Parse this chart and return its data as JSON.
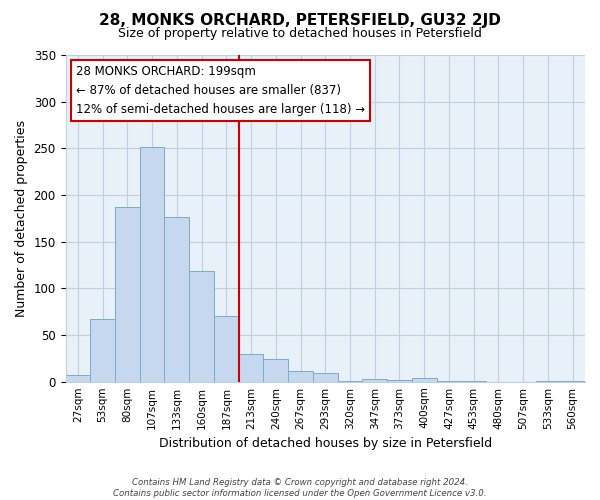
{
  "title": "28, MONKS ORCHARD, PETERSFIELD, GU32 2JD",
  "subtitle": "Size of property relative to detached houses in Petersfield",
  "xlabel": "Distribution of detached houses by size in Petersfield",
  "ylabel": "Number of detached properties",
  "bar_labels": [
    "27sqm",
    "53sqm",
    "80sqm",
    "107sqm",
    "133sqm",
    "160sqm",
    "187sqm",
    "213sqm",
    "240sqm",
    "267sqm",
    "293sqm",
    "320sqm",
    "347sqm",
    "373sqm",
    "400sqm",
    "427sqm",
    "453sqm",
    "480sqm",
    "507sqm",
    "533sqm",
    "560sqm"
  ],
  "bar_values": [
    7,
    67,
    187,
    251,
    176,
    119,
    70,
    30,
    24,
    11,
    9,
    1,
    3,
    2,
    4,
    1,
    1,
    0,
    0,
    1,
    1
  ],
  "bar_color": "#c5d8ee",
  "bar_edge_color": "#7aaad0",
  "vline_x": 6.5,
  "vline_color": "#cc0000",
  "annotation_line1": "28 MONKS ORCHARD: 199sqm",
  "annotation_line2": "← 87% of detached houses are smaller (837)",
  "annotation_line3": "12% of semi-detached houses are larger (118) →",
  "annotation_box_facecolor": "white",
  "annotation_box_edgecolor": "#cc0000",
  "ylim": [
    0,
    350
  ],
  "yticks": [
    0,
    50,
    100,
    150,
    200,
    250,
    300,
    350
  ],
  "footer_text": "Contains HM Land Registry data © Crown copyright and database right 2024.\nContains public sector information licensed under the Open Government Licence v3.0.",
  "bg_color": "white",
  "plot_bg_color": "#e8f0f8",
  "grid_color": "#c0d0e0"
}
